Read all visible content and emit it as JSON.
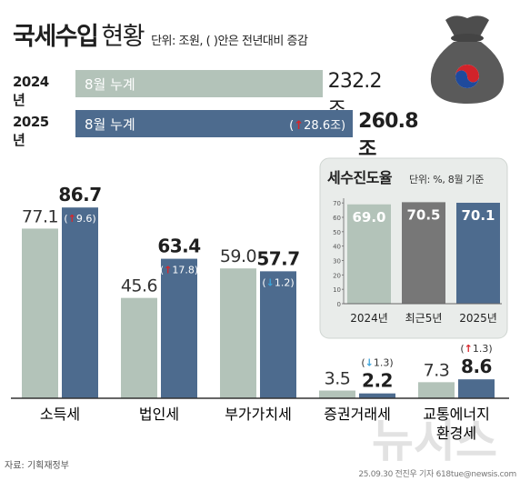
{
  "header": {
    "title": "국세수입",
    "subtitle": "현황",
    "unit_note": "단위: 조원, ( )안은 전년대비 증감"
  },
  "cumulative": [
    {
      "year": "2024년",
      "label": "8월 누계",
      "value": 232.2,
      "value_text": "232.2조",
      "change_text": ""
    },
    {
      "year": "2025년",
      "label": "8월 누계",
      "value": 260.8,
      "value_text": "260.8조",
      "change_text": "28.6조"
    }
  ],
  "colors": {
    "prev_year": "#b3c3b9",
    "curr_year": "#4d6b8e",
    "up_arrow": "#d7262b",
    "down_arrow": "#3aa4dc",
    "inset_bg": "#e9ecea",
    "axis": "#333333",
    "watermark": "#dddddd"
  },
  "chart_data": [
    {
      "type": "bar",
      "categories": [
        "소득세",
        "법인세",
        "부가가치세",
        "증권거래세",
        "교통에너지 환경세"
      ],
      "series": [
        {
          "name": "2024",
          "values": [
            77.1,
            45.6,
            59.0,
            3.5,
            7.3
          ]
        },
        {
          "name": "2025",
          "values": [
            86.7,
            63.4,
            57.7,
            2.2,
            8.6
          ]
        }
      ],
      "value_labels_2024": [
        "77.1",
        "45.6",
        "59.0",
        "3.5",
        "7.3"
      ],
      "value_labels_2025": [
        "86.7",
        "63.4",
        "57.7",
        "2.2",
        "8.6"
      ],
      "changes": [
        9.6,
        17.8,
        -1.2,
        -1.3,
        1.3
      ],
      "change_labels": [
        "9.6",
        "17.8",
        "1.2",
        "1.3",
        "1.3"
      ],
      "ylim": [
        0,
        100
      ],
      "grid": false
    },
    {
      "type": "bar",
      "title": "세수진도율",
      "subtitle": "단위: %, 8월 기준",
      "categories": [
        "2024년",
        "최근5년",
        "2025년"
      ],
      "values": [
        69.0,
        70.5,
        70.1
      ],
      "value_labels": [
        "69.0",
        "70.5",
        "70.1"
      ],
      "yticks": [
        0,
        10,
        20,
        30,
        40,
        50,
        60,
        70
      ],
      "ylim": [
        0,
        72
      ],
      "grid": false
    }
  ],
  "watermark": "뉴시스",
  "source": "자료: 기획재정부",
  "credit": "25.09.30 전진우 기자 618tue@newsis.com"
}
